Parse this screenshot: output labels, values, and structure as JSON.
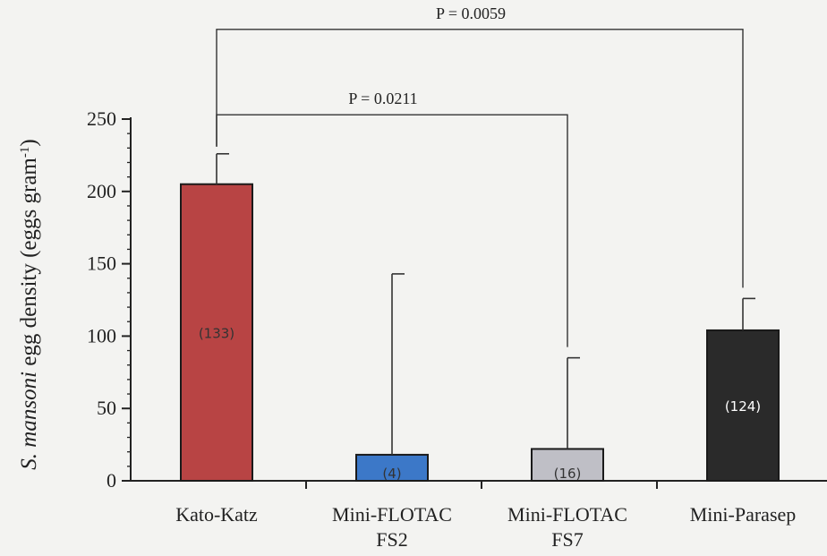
{
  "chart_data": {
    "type": "bar",
    "categories": [
      "Kato-Katz",
      "Mini-FLOTAC FS2",
      "Mini-FLOTAC FS7",
      "Mini-Parasep"
    ],
    "category_lines": [
      [
        "Kato-Katz"
      ],
      [
        "Mini-FLOTAC",
        "FS2"
      ],
      [
        "Mini-FLOTAC",
        "FS7"
      ],
      [
        "Mini-Parasep"
      ]
    ],
    "values": [
      205,
      18,
      22,
      104
    ],
    "error_upper": [
      226,
      143,
      85,
      126
    ],
    "sample_labels": [
      "(133)",
      "(4)",
      "(16)",
      "(124)"
    ],
    "colors": [
      "#b84444",
      "#3c78c8",
      "#bfbfc6",
      "#2a2a2a"
    ],
    "ylabel_italic": "S. mansoni",
    "ylabel_rest": " egg density (eggs gram",
    "ylabel_sup": "-1",
    "ylabel_close": ")",
    "ylim": [
      0,
      250
    ],
    "yticks": [
      0,
      50,
      100,
      150,
      200,
      250
    ],
    "grid": false,
    "annotations": [
      {
        "text": "P = 0.0211",
        "from": 0,
        "to": 2,
        "level": 253
      },
      {
        "text": "P = 0.0059",
        "from": 0,
        "to": 3,
        "level": 312
      }
    ]
  }
}
